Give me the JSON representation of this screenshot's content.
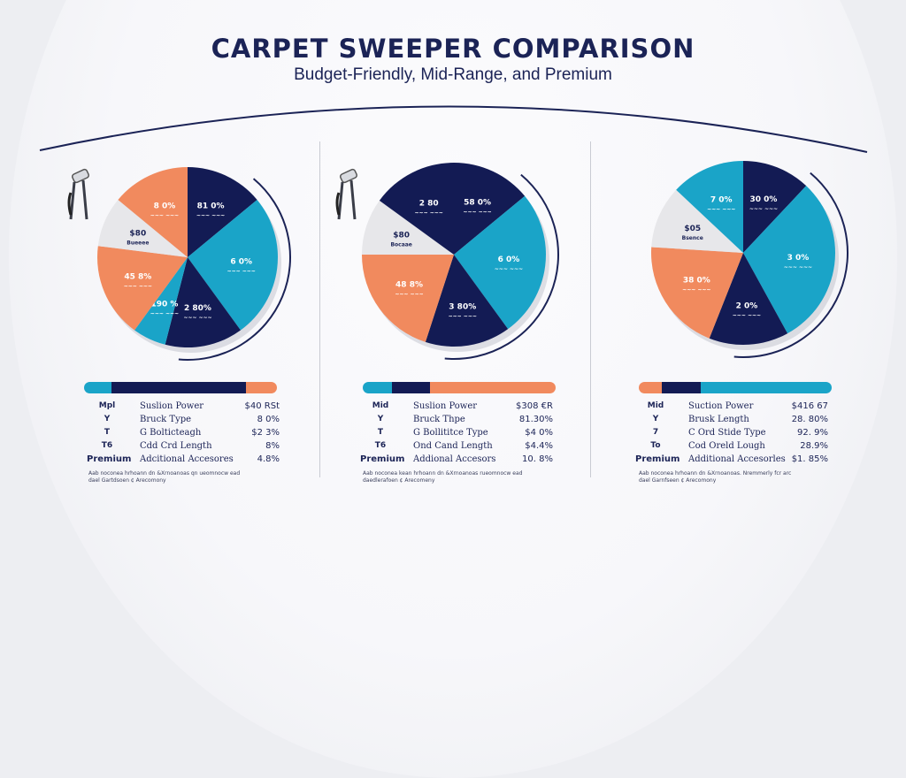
{
  "header": {
    "title": "CARPET SWEEPER COMPARISON",
    "subtitle": "Budget-Friendly, Mid-Range, and Premium"
  },
  "colors": {
    "navy": "#131b54",
    "teal": "#1aa4c8",
    "orange": "#f18a5e",
    "light": "#e7e7ea"
  },
  "chart_data": [
    {
      "type": "pie",
      "slices": [
        {
          "value": 14,
          "color": "#131b54",
          "label": "81 0%",
          "sub": "~~~ ~~~"
        },
        {
          "value": 26,
          "color": "#1aa4c8",
          "label": "6 0%",
          "sub": "~~~ ~~~"
        },
        {
          "value": 14,
          "color": "#131b54",
          "label": "2 80%",
          "sub": "~~~ ~~~"
        },
        {
          "value": 6,
          "color": "#1aa4c8",
          "label": "190 %",
          "sub": "~~~ ~~~"
        },
        {
          "value": 17,
          "color": "#f18a5e",
          "label": "45 8%",
          "sub": "~~~ ~~~"
        },
        {
          "value": 9,
          "color": "#e7e7ea",
          "label": "$80",
          "sub": "Bueeee"
        },
        {
          "value": 14,
          "color": "#f18a5e",
          "label": "8 0%",
          "sub": "~~~ ~~~"
        }
      ]
    },
    {
      "type": "pie",
      "slices": [
        {
          "value": 14,
          "color": "#131b54",
          "label": "58 0%",
          "sub": "~~~ ~~~"
        },
        {
          "value": 26,
          "color": "#1aa4c8",
          "label": "6 0%",
          "sub": "~~~ ~~~"
        },
        {
          "value": 15,
          "color": "#131b54",
          "label": "3 80%",
          "sub": "~~~ ~~~"
        },
        {
          "value": 20,
          "color": "#f18a5e",
          "label": "48 8%",
          "sub": "~~~ ~~~"
        },
        {
          "value": 10,
          "color": "#e7e7ea",
          "label": "$80",
          "sub": "Bocaae"
        },
        {
          "value": 15,
          "color": "#131b54",
          "label": "2 80",
          "sub": "~~~ ~~~"
        }
      ]
    },
    {
      "type": "pie",
      "slices": [
        {
          "value": 12,
          "color": "#131b54",
          "label": "30 0%",
          "sub": "~~~ ~~~"
        },
        {
          "value": 30,
          "color": "#1aa4c8",
          "label": "3 0%",
          "sub": "~~~ ~~~"
        },
        {
          "value": 14,
          "color": "#131b54",
          "label": "2 0%",
          "sub": "~~~ ~~~"
        },
        {
          "value": 20,
          "color": "#f18a5e",
          "label": "38 0%",
          "sub": "~~~ ~~~"
        },
        {
          "value": 11,
          "color": "#e7e7ea",
          "label": "$05",
          "sub": "Bsence"
        },
        {
          "value": 13,
          "color": "#1aa4c8",
          "label": "7 0%",
          "sub": "~~~ ~~~"
        }
      ]
    }
  ],
  "bars": [
    [
      {
        "w": 14,
        "color": "#1aa4c8"
      },
      {
        "w": 70,
        "color": "#131b54"
      },
      {
        "w": 16,
        "color": "#f18a5e"
      }
    ],
    [
      {
        "w": 15,
        "color": "#1aa4c8"
      },
      {
        "w": 20,
        "color": "#131b54"
      },
      {
        "w": 65,
        "color": "#f18a5e"
      }
    ],
    [
      {
        "w": 12,
        "color": "#f18a5e"
      },
      {
        "w": 20,
        "color": "#131b54"
      },
      {
        "w": 68,
        "color": "#1aa4c8"
      }
    ]
  ],
  "tables": [
    {
      "rows": [
        {
          "lab": "Mpl",
          "feat": "Suslion Power",
          "val": "$40 RSt"
        },
        {
          "lab": "Y",
          "feat": "Bruck Type",
          "val": "8 0%"
        },
        {
          "lab": "T",
          "feat": "G Bolticteagh",
          "val": "$2 3%"
        },
        {
          "lab": "T6",
          "feat": "Cdd Crd Length",
          "val": "8%"
        },
        {
          "lab": "Premium",
          "feat": "Adcitional Accesores",
          "val": "4.8%"
        }
      ],
      "foot": [
        "Aab noconea hrhoann dn &Xrnoanoas qn ueomnocw ead",
        "dael Gartdsoen ¢ Arecomony"
      ]
    },
    {
      "rows": [
        {
          "lab": "Mid",
          "feat": "Suslion Power",
          "val": "$308 €R"
        },
        {
          "lab": "Y",
          "feat": "Bruck Thpe",
          "val": "81.30%"
        },
        {
          "lab": "T",
          "feat": "G Bollititce Type",
          "val": "$4 0%"
        },
        {
          "lab": "T6",
          "feat": "Ond Cand Length",
          "val": "$4.4%"
        },
        {
          "lab": "Premium",
          "feat": "Addional Accesors",
          "val": "10. 8%"
        }
      ],
      "foot": [
        "Aab noconea kean hrhoann dn &Xrnoanoas rueomnocw ead",
        "daedlerafoen ¢ Arecomeny"
      ]
    },
    {
      "rows": [
        {
          "lab": "Mid",
          "feat": "Suction Power",
          "val": "$416 67"
        },
        {
          "lab": "Y",
          "feat": "Brusk Length",
          "val": "28. 80%"
        },
        {
          "lab": "7",
          "feat": "C Ord Stide Type",
          "val": "92. 9%"
        },
        {
          "lab": "To",
          "feat": "Cod Oreld Lough",
          "val": "28.9%"
        },
        {
          "lab": "Premium",
          "feat": "Additional Accesorles",
          "val": "$1. 85%"
        }
      ],
      "foot": [
        "Aab noconea hrhoann dn &Xrnoanoas. Nremmerly fcr arc",
        "dael Garnfseen ¢ Arecomony"
      ]
    }
  ]
}
